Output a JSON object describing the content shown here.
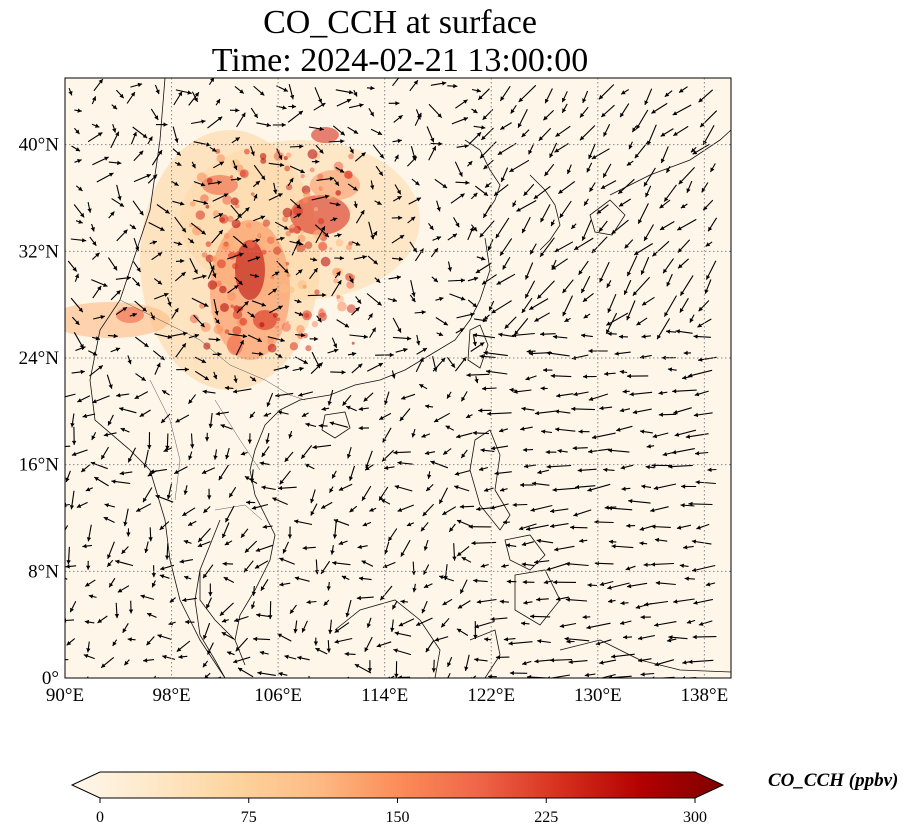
{
  "title": {
    "line1": "CO_CCH at surface",
    "line2": "Time: 2024-02-21 13:00:00"
  },
  "map": {
    "extent": {
      "lon": [
        90,
        140
      ],
      "lat": [
        0,
        45
      ]
    },
    "lon_ticks": [
      {
        "value": 90,
        "label": "90°E"
      },
      {
        "value": 98,
        "label": "98°E"
      },
      {
        "value": 106,
        "label": "106°E"
      },
      {
        "value": 114,
        "label": "114°E"
      },
      {
        "value": 122,
        "label": "122°E"
      },
      {
        "value": 130,
        "label": "130°E"
      },
      {
        "value": 138,
        "label": "138°E"
      }
    ],
    "lat_ticks": [
      {
        "value": 0,
        "label": "0°"
      },
      {
        "value": 8,
        "label": "8°N"
      },
      {
        "value": 16,
        "label": "16°N"
      },
      {
        "value": 24,
        "label": "24°N"
      },
      {
        "value": 32,
        "label": "32°N"
      },
      {
        "value": 40,
        "label": "40°N"
      }
    ],
    "gridlines": "dotted"
  },
  "colorbar": {
    "label": "CO_CCH (ppbv)",
    "min": 0,
    "max": 300,
    "ticks": [
      {
        "value": 0,
        "label": "0"
      },
      {
        "value": 75,
        "label": "75"
      },
      {
        "value": 150,
        "label": "150"
      },
      {
        "value": 225,
        "label": "225"
      },
      {
        "value": 300,
        "label": "300"
      }
    ],
    "colormap": "OrRd",
    "stops": [
      "#fff7ec",
      "#fee8c8",
      "#fdd49e",
      "#fdbb84",
      "#fc8d59",
      "#ef6548",
      "#d7301f",
      "#b30000",
      "#7f0000"
    ]
  }
}
